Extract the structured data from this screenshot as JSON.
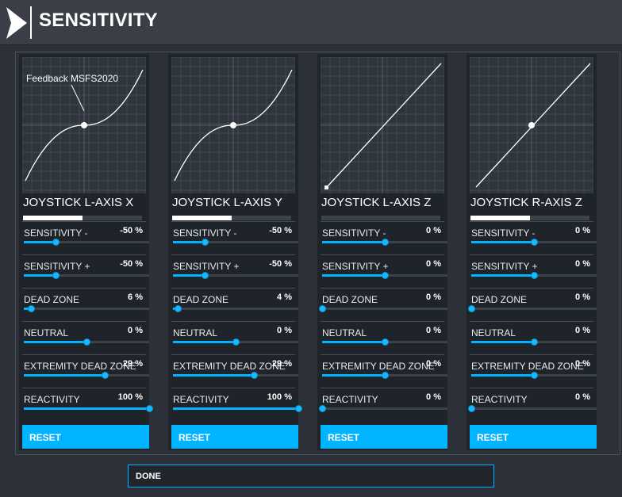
{
  "header": {
    "title": "SENSITIVITY"
  },
  "panels": [
    {
      "axis": "JOYSTICK L-AXIS X",
      "graph_label": "Feedback MSFS2020",
      "curve": "s",
      "center_dot": true,
      "bar_fill": 0.5,
      "settings": [
        {
          "label": "SENSITIVITY -",
          "value": "-50 %",
          "level": 0.25
        },
        {
          "label": "SENSITIVITY +",
          "value": "-50 %",
          "level": 0.25
        },
        {
          "label": "DEAD ZONE",
          "value": "6 %",
          "level": 0.06
        },
        {
          "label": "NEUTRAL",
          "value": "0 %",
          "level": 0.5
        },
        {
          "label": "EXTREMITY DEAD ZONE",
          "value": "29 %",
          "level": 0.645
        },
        {
          "label": "REACTIVITY",
          "value": "100 %",
          "level": 1.0
        }
      ],
      "reset_label": "RESET"
    },
    {
      "axis": "JOYSTICK L-AXIS Y",
      "graph_label": "",
      "curve": "s",
      "center_dot": true,
      "bar_fill": 0.5,
      "settings": [
        {
          "label": "SENSITIVITY -",
          "value": "-50 %",
          "level": 0.25
        },
        {
          "label": "SENSITIVITY +",
          "value": "-50 %",
          "level": 0.25
        },
        {
          "label": "DEAD ZONE",
          "value": "4 %",
          "level": 0.04
        },
        {
          "label": "NEUTRAL",
          "value": "0 %",
          "level": 0.5
        },
        {
          "label": "EXTREMITY DEAD ZONE",
          "value": "29 %",
          "level": 0.645
        },
        {
          "label": "REACTIVITY",
          "value": "100 %",
          "level": 1.0
        }
      ],
      "reset_label": "RESET"
    },
    {
      "axis": "JOYSTICK L-AXIS Z",
      "graph_label": "",
      "curve": "linear",
      "center_dot": false,
      "bar_fill": 0.0,
      "settings": [
        {
          "label": "SENSITIVITY -",
          "value": "0 %",
          "level": 0.5
        },
        {
          "label": "SENSITIVITY +",
          "value": "0 %",
          "level": 0.5
        },
        {
          "label": "DEAD ZONE",
          "value": "0 %",
          "level": 0.0
        },
        {
          "label": "NEUTRAL",
          "value": "0 %",
          "level": 0.5
        },
        {
          "label": "EXTREMITY DEAD ZONE",
          "value": "0 %",
          "level": 0.5
        },
        {
          "label": "REACTIVITY",
          "value": "0 %",
          "level": 0.0
        }
      ],
      "reset_label": "RESET"
    },
    {
      "axis": "JOYSTICK R-AXIS Z",
      "graph_label": "",
      "curve": "linear",
      "center_dot": true,
      "bar_fill": 0.5,
      "settings": [
        {
          "label": "SENSITIVITY -",
          "value": "0 %",
          "level": 0.5
        },
        {
          "label": "SENSITIVITY +",
          "value": "0 %",
          "level": 0.5
        },
        {
          "label": "DEAD ZONE",
          "value": "0 %",
          "level": 0.0
        },
        {
          "label": "NEUTRAL",
          "value": "0 %",
          "level": 0.5
        },
        {
          "label": "EXTREMITY DEAD ZONE",
          "value": "0 %",
          "level": 0.5
        },
        {
          "label": "REACTIVITY",
          "value": "0 %",
          "level": 0.0
        }
      ],
      "reset_label": "RESET"
    }
  ],
  "footer": {
    "done_label": "DONE"
  },
  "colors": {
    "accent": "#00b4ff",
    "panel": "#1f242a",
    "graph": "#2f353d"
  }
}
